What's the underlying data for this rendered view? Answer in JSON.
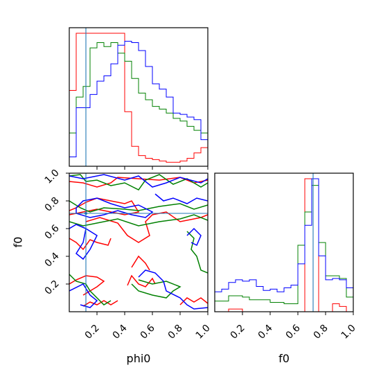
{
  "chart_data": {
    "type": "corner",
    "parameters": [
      "phi0",
      "f0"
    ],
    "truths": {
      "phi0": 0.12,
      "f0": 0.71
    },
    "colors": {
      "truth": "#1f77b4",
      "series": [
        "#ff0000",
        "#008000",
        "#0000ff"
      ]
    },
    "phi0": {
      "xlabel": "phi0",
      "xlim": [
        0.0,
        1.0
      ],
      "xticks": [
        "0.2",
        "0.4",
        "0.6",
        "0.8",
        "1.0"
      ],
      "bin_edges": [
        0.0,
        0.05,
        0.1,
        0.15,
        0.2,
        0.25,
        0.3,
        0.35,
        0.4,
        0.45,
        0.5,
        0.55,
        0.6,
        0.65,
        0.7,
        0.75,
        0.8,
        0.85,
        0.9,
        0.95,
        1.0
      ],
      "series": [
        {
          "color": "#ff0000",
          "values": [
            0.57,
            1.0,
            1.0,
            1.0,
            1.0,
            1.0,
            1.0,
            1.0,
            0.41,
            0.15,
            0.08,
            0.06,
            0.05,
            0.04,
            0.03,
            0.03,
            0.04,
            0.06,
            0.1,
            0.14
          ]
        },
        {
          "color": "#008000",
          "values": [
            0.25,
            0.52,
            0.6,
            0.89,
            0.93,
            0.9,
            0.93,
            0.85,
            0.79,
            0.66,
            0.55,
            0.5,
            0.45,
            0.43,
            0.4,
            0.36,
            0.34,
            0.3,
            0.27,
            0.25
          ]
        },
        {
          "color": "#0000ff",
          "values": [
            0.07,
            0.44,
            0.44,
            0.54,
            0.64,
            0.68,
            0.77,
            0.91,
            0.94,
            0.93,
            0.87,
            0.75,
            0.62,
            0.58,
            0.52,
            0.4,
            0.39,
            0.37,
            0.35,
            0.2
          ]
        }
      ]
    },
    "f0": {
      "xlabel": "f0",
      "xlim": [
        0.0,
        1.0
      ],
      "xticks": [
        "0.2",
        "0.4",
        "0.6",
        "0.8",
        "1.0"
      ],
      "bin_edges": [
        0.0,
        0.05,
        0.1,
        0.15,
        0.2,
        0.25,
        0.3,
        0.35,
        0.4,
        0.45,
        0.5,
        0.55,
        0.6,
        0.65,
        0.7,
        0.75,
        0.8,
        0.85,
        0.9,
        0.95,
        1.0
      ],
      "series": [
        {
          "color": "#ff0000",
          "values": [
            0.0,
            0.0,
            0.02,
            0.02,
            0.0,
            0.0,
            0.0,
            0.0,
            0.0,
            0.0,
            0.0,
            0.0,
            0.0,
            1.0,
            1.0,
            0.0,
            0.0,
            0.06,
            0.04,
            0.0
          ]
        },
        {
          "color": "#008000",
          "values": [
            0.08,
            0.08,
            0.12,
            0.12,
            0.11,
            0.09,
            0.09,
            0.09,
            0.07,
            0.07,
            0.06,
            0.06,
            0.5,
            0.75,
            0.95,
            0.52,
            0.27,
            0.27,
            0.25,
            0.11
          ]
        },
        {
          "color": "#0000ff",
          "values": [
            0.15,
            0.17,
            0.22,
            0.24,
            0.23,
            0.24,
            0.19,
            0.16,
            0.17,
            0.15,
            0.18,
            0.2,
            0.36,
            0.65,
            1.0,
            0.42,
            0.24,
            0.25,
            0.24,
            0.18
          ]
        }
      ]
    },
    "joint": {
      "xlabel": "phi0",
      "ylabel": "f0",
      "xlim": [
        0.0,
        1.0
      ],
      "ylim": [
        0.0,
        1.0
      ],
      "xticks": [
        "0.2",
        "0.4",
        "0.6",
        "0.8",
        "1.0"
      ],
      "yticks": [
        "0.2",
        "0.4",
        "0.6",
        "0.8",
        "1.0"
      ],
      "contours": [
        {
          "color": "#ff0000",
          "points": [
            [
              0.0,
              0.94
            ],
            [
              0.1,
              0.93
            ],
            [
              0.2,
              0.9
            ],
            [
              0.3,
              0.93
            ],
            [
              0.35,
              0.97
            ],
            [
              0.5,
              0.96
            ],
            [
              0.65,
              0.95
            ],
            [
              0.8,
              0.97
            ],
            [
              0.9,
              0.93
            ],
            [
              1.0,
              0.95
            ]
          ]
        },
        {
          "color": "#ff0000",
          "points": [
            [
              0.0,
              0.73
            ],
            [
              0.05,
              0.75
            ],
            [
              0.12,
              0.79
            ],
            [
              0.2,
              0.82
            ],
            [
              0.3,
              0.8
            ],
            [
              0.4,
              0.78
            ],
            [
              0.45,
              0.8
            ],
            [
              0.5,
              0.72
            ],
            [
              0.4,
              0.7
            ],
            [
              0.3,
              0.72
            ],
            [
              0.2,
              0.74
            ],
            [
              0.1,
              0.72
            ],
            [
              0.0,
              0.7
            ]
          ]
        },
        {
          "color": "#ff0000",
          "points": [
            [
              0.12,
              0.65
            ],
            [
              0.22,
              0.68
            ],
            [
              0.35,
              0.64
            ],
            [
              0.42,
              0.55
            ],
            [
              0.5,
              0.5
            ],
            [
              0.58,
              0.55
            ],
            [
              0.55,
              0.65
            ],
            [
              0.6,
              0.7
            ],
            [
              0.7,
              0.72
            ],
            [
              0.8,
              0.65
            ],
            [
              0.95,
              0.68
            ],
            [
              1.0,
              0.7
            ]
          ]
        },
        {
          "color": "#ff0000",
          "points": [
            [
              0.0,
              0.53
            ],
            [
              0.05,
              0.5
            ],
            [
              0.1,
              0.45
            ],
            [
              0.15,
              0.52
            ],
            [
              0.2,
              0.5
            ],
            [
              0.28,
              0.48
            ],
            [
              0.3,
              0.53
            ]
          ]
        },
        {
          "color": "#ff0000",
          "points": [
            [
              0.0,
              0.2
            ],
            [
              0.05,
              0.23
            ],
            [
              0.12,
              0.26
            ],
            [
              0.2,
              0.25
            ],
            [
              0.25,
              0.22
            ],
            [
              0.2,
              0.18
            ],
            [
              0.15,
              0.15
            ],
            [
              0.1,
              0.12
            ]
          ]
        },
        {
          "color": "#ff0000",
          "points": [
            [
              0.42,
              0.19
            ],
            [
              0.45,
              0.26
            ],
            [
              0.5,
              0.2
            ],
            [
              0.55,
              0.18
            ],
            [
              0.6,
              0.24
            ],
            [
              0.62,
              0.2
            ]
          ]
        },
        {
          "color": "#ff0000",
          "points": [
            [
              0.45,
              0.32
            ],
            [
              0.5,
              0.4
            ],
            [
              0.55,
              0.35
            ],
            [
              0.58,
              0.3
            ]
          ]
        },
        {
          "color": "#ff0000",
          "points": [
            [
              0.1,
              0.04
            ],
            [
              0.15,
              0.07
            ],
            [
              0.2,
              0.05
            ],
            [
              0.25,
              0.08
            ],
            [
              0.3,
              0.05
            ],
            [
              0.35,
              0.08
            ]
          ]
        },
        {
          "color": "#ff0000",
          "points": [
            [
              0.8,
              0.05
            ],
            [
              0.85,
              0.1
            ],
            [
              0.9,
              0.07
            ],
            [
              0.95,
              0.1
            ],
            [
              1.0,
              0.06
            ]
          ]
        },
        {
          "color": "#008000",
          "points": [
            [
              0.0,
              0.98
            ],
            [
              0.08,
              0.99
            ],
            [
              0.12,
              0.94
            ],
            [
              0.2,
              0.95
            ],
            [
              0.3,
              0.91
            ],
            [
              0.4,
              0.93
            ],
            [
              0.5,
              0.88
            ],
            [
              0.55,
              0.95
            ],
            [
              0.65,
              0.99
            ],
            [
              0.75,
              0.92
            ],
            [
              0.85,
              0.96
            ],
            [
              0.95,
              0.9
            ],
            [
              1.0,
              0.93
            ]
          ]
        },
        {
          "color": "#008000",
          "points": [
            [
              0.0,
              0.8
            ],
            [
              0.08,
              0.75
            ],
            [
              0.15,
              0.72
            ],
            [
              0.25,
              0.75
            ],
            [
              0.4,
              0.74
            ],
            [
              0.5,
              0.73
            ],
            [
              0.65,
              0.76
            ],
            [
              0.8,
              0.78
            ],
            [
              0.9,
              0.74
            ],
            [
              1.0,
              0.77
            ]
          ]
        },
        {
          "color": "#008000",
          "points": [
            [
              0.0,
              0.65
            ],
            [
              0.1,
              0.62
            ],
            [
              0.2,
              0.64
            ],
            [
              0.35,
              0.67
            ],
            [
              0.5,
              0.62
            ],
            [
              0.65,
              0.65
            ],
            [
              0.8,
              0.67
            ],
            [
              0.9,
              0.7
            ],
            [
              1.0,
              0.66
            ]
          ]
        },
        {
          "color": "#008000",
          "points": [
            [
              0.85,
              0.58
            ],
            [
              0.9,
              0.53
            ],
            [
              0.88,
              0.45
            ],
            [
              0.92,
              0.4
            ],
            [
              0.95,
              0.3
            ],
            [
              1.0,
              0.28
            ]
          ]
        },
        {
          "color": "#008000",
          "points": [
            [
              0.0,
              0.27
            ],
            [
              0.05,
              0.22
            ],
            [
              0.12,
              0.2
            ],
            [
              0.15,
              0.15
            ],
            [
              0.2,
              0.1
            ],
            [
              0.25,
              0.05
            ],
            [
              0.3,
              0.08
            ]
          ]
        },
        {
          "color": "#008000",
          "points": [
            [
              0.45,
              0.2
            ],
            [
              0.5,
              0.15
            ],
            [
              0.6,
              0.12
            ],
            [
              0.7,
              0.1
            ],
            [
              0.75,
              0.15
            ],
            [
              0.8,
              0.18
            ],
            [
              0.7,
              0.22
            ],
            [
              0.6,
              0.2
            ],
            [
              0.5,
              0.23
            ]
          ]
        },
        {
          "color": "#0000ff",
          "points": [
            [
              0.0,
              0.98
            ],
            [
              0.1,
              0.96
            ],
            [
              0.25,
              0.99
            ],
            [
              0.4,
              0.95
            ],
            [
              0.5,
              0.98
            ],
            [
              0.6,
              0.9
            ],
            [
              0.7,
              0.93
            ],
            [
              0.8,
              0.97
            ],
            [
              0.95,
              0.93
            ],
            [
              1.0,
              0.96
            ]
          ]
        },
        {
          "color": "#0000ff",
          "points": [
            [
              0.05,
              0.75
            ],
            [
              0.1,
              0.8
            ],
            [
              0.2,
              0.82
            ],
            [
              0.3,
              0.78
            ],
            [
              0.4,
              0.75
            ],
            [
              0.5,
              0.77
            ],
            [
              0.6,
              0.72
            ],
            [
              0.55,
              0.68
            ],
            [
              0.45,
              0.7
            ],
            [
              0.35,
              0.73
            ],
            [
              0.25,
              0.7
            ],
            [
              0.15,
              0.68
            ],
            [
              0.05,
              0.71
            ],
            [
              0.05,
              0.75
            ]
          ]
        },
        {
          "color": "#0000ff",
          "points": [
            [
              0.0,
              0.6
            ],
            [
              0.05,
              0.63
            ],
            [
              0.12,
              0.6
            ],
            [
              0.1,
              0.5
            ],
            [
              0.05,
              0.42
            ],
            [
              0.1,
              0.38
            ],
            [
              0.15,
              0.45
            ],
            [
              0.2,
              0.55
            ],
            [
              0.12,
              0.6
            ]
          ]
        },
        {
          "color": "#0000ff",
          "points": [
            [
              0.62,
              0.85
            ],
            [
              0.68,
              0.8
            ],
            [
              0.75,
              0.82
            ],
            [
              0.85,
              0.78
            ],
            [
              0.92,
              0.82
            ],
            [
              1.0,
              0.8
            ]
          ]
        },
        {
          "color": "#0000ff",
          "points": [
            [
              0.85,
              0.55
            ],
            [
              0.9,
              0.6
            ],
            [
              0.95,
              0.55
            ],
            [
              0.92,
              0.48
            ],
            [
              0.88,
              0.5
            ]
          ]
        },
        {
          "color": "#0000ff",
          "points": [
            [
              0.0,
              0.15
            ],
            [
              0.1,
              0.2
            ],
            [
              0.15,
              0.12
            ],
            [
              0.2,
              0.08
            ],
            [
              0.15,
              0.03
            ],
            [
              0.08,
              0.05
            ]
          ]
        },
        {
          "color": "#0000ff",
          "points": [
            [
              0.5,
              0.25
            ],
            [
              0.55,
              0.3
            ],
            [
              0.62,
              0.28
            ],
            [
              0.68,
              0.22
            ],
            [
              0.7,
              0.15
            ],
            [
              0.8,
              0.1
            ],
            [
              0.85,
              0.05
            ],
            [
              0.9,
              0.02
            ],
            [
              1.0,
              0.03
            ]
          ]
        }
      ]
    }
  }
}
